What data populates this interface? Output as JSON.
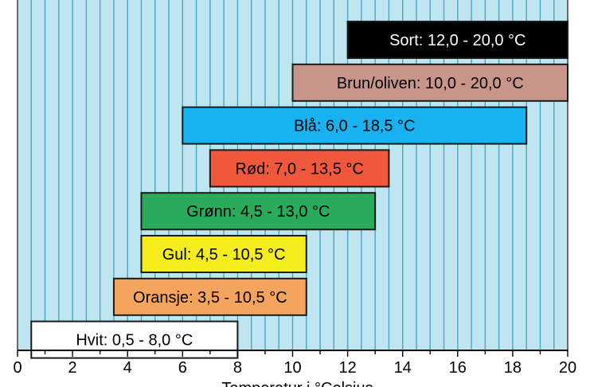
{
  "chart_data": {
    "type": "bar",
    "orientation": "horizontal-range",
    "xlabel": "Temperatur i °Celsius",
    "xlim": [
      0,
      20
    ],
    "xticks": [
      0,
      2,
      4,
      6,
      8,
      10,
      12,
      14,
      16,
      18,
      20
    ],
    "grid": "vertical",
    "background_color": "#bfe6f0",
    "grid_color": "#4aa6c0",
    "ranges": [
      {
        "label": "Sort: 12,0 - 20,0 °C",
        "start": 12.0,
        "end": 20.0,
        "color": "#000000",
        "text_color": "#ffffff"
      },
      {
        "label": "Brun/oliven: 10,0 - 20,0 °C",
        "start": 10.0,
        "end": 20.0,
        "color": "#c8958a",
        "text_color": "#000000"
      },
      {
        "label": "Blå: 6,0 - 18,5 °C",
        "start": 6.0,
        "end": 18.5,
        "color": "#19b2f0",
        "text_color": "#000000"
      },
      {
        "label": "Rød: 7,0 - 13,5 °C",
        "start": 7.0,
        "end": 13.5,
        "color": "#f0583c",
        "text_color": "#000000"
      },
      {
        "label": "Grønn: 4,5 - 13,0 °C",
        "start": 4.5,
        "end": 13.0,
        "color": "#2aab5c",
        "text_color": "#000000"
      },
      {
        "label": "Gul: 4,5 - 10,5 °C",
        "start": 4.5,
        "end": 10.5,
        "color": "#f4ec1c",
        "text_color": "#000000"
      },
      {
        "label": "Oransje: 3,5 - 10,5 °C",
        "start": 3.5,
        "end": 10.5,
        "color": "#f4a45c",
        "text_color": "#000000"
      },
      {
        "label": "Hvit: 0,5 - 8,0 °C",
        "start": 0.5,
        "end": 8.0,
        "color": "#ffffff",
        "text_color": "#000000"
      }
    ]
  }
}
